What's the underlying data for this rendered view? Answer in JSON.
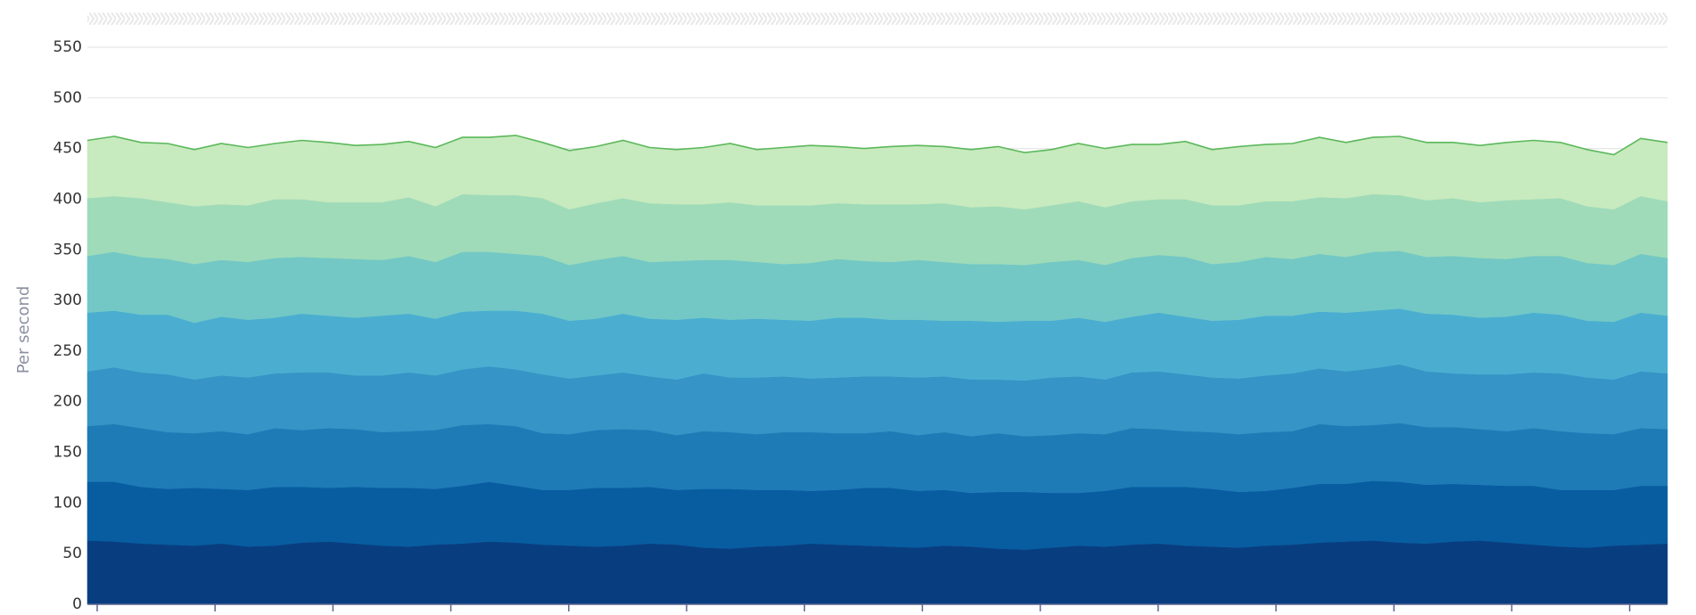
{
  "chart_data": {
    "type": "area",
    "stacked": true,
    "y_label": "Per second",
    "ylim": [
      0,
      550
    ],
    "yticks": [
      0,
      50,
      100,
      150,
      200,
      250,
      300,
      350,
      400,
      450,
      500,
      550
    ],
    "grid": true,
    "line_color": "#5cb85c",
    "series": [
      {
        "color": "#083e80",
        "values": [
          63,
          62,
          60,
          59,
          58,
          60,
          57,
          58,
          61,
          62,
          60,
          58,
          57,
          59,
          60,
          62,
          61,
          59,
          58,
          57,
          58,
          60,
          59,
          56,
          55,
          57,
          58,
          60,
          59,
          58,
          57,
          56,
          58,
          57,
          55,
          54,
          56,
          58,
          57,
          59,
          60,
          58,
          57,
          56,
          58,
          59,
          61,
          62,
          63,
          61,
          60,
          62,
          63,
          61,
          59,
          57,
          56,
          58,
          59,
          60
        ]
      },
      {
        "color": "#085da1",
        "values": [
          58,
          59,
          56,
          55,
          57,
          54,
          56,
          58,
          55,
          53,
          56,
          57,
          58,
          55,
          57,
          59,
          56,
          54,
          55,
          58,
          57,
          56,
          54,
          58,
          59,
          56,
          55,
          52,
          54,
          57,
          58,
          56,
          55,
          53,
          56,
          57,
          54,
          52,
          55,
          57,
          56,
          58,
          57,
          55,
          54,
          56,
          58,
          57,
          59,
          60,
          58,
          57,
          55,
          56,
          58,
          56,
          57,
          55,
          58,
          57
        ]
      },
      {
        "color": "#1f7bb6",
        "values": [
          55,
          57,
          58,
          56,
          54,
          57,
          55,
          58,
          56,
          59,
          57,
          55,
          56,
          58,
          60,
          57,
          59,
          56,
          55,
          57,
          58,
          56,
          54,
          57,
          56,
          55,
          57,
          58,
          56,
          54,
          56,
          55,
          57,
          56,
          58,
          55,
          57,
          59,
          56,
          58,
          57,
          55,
          56,
          57,
          58,
          56,
          59,
          57,
          55,
          58,
          57,
          56,
          55,
          54,
          57,
          58,
          56,
          55,
          57,
          56
        ]
      },
      {
        "color": "#3694c6",
        "values": [
          54,
          56,
          55,
          57,
          53,
          55,
          56,
          54,
          57,
          55,
          53,
          56,
          58,
          54,
          55,
          57,
          56,
          58,
          55,
          54,
          56,
          53,
          55,
          57,
          54,
          56,
          55,
          53,
          55,
          56,
          54,
          57,
          55,
          56,
          53,
          55,
          57,
          56,
          54,
          55,
          57,
          56,
          54,
          55,
          56,
          57,
          55,
          54,
          56,
          58,
          55,
          53,
          54,
          56,
          55,
          57,
          55,
          54,
          56,
          55
        ]
      },
      {
        "color": "#4baed1",
        "values": [
          58,
          56,
          57,
          59,
          56,
          58,
          57,
          55,
          58,
          56,
          57,
          59,
          58,
          56,
          57,
          55,
          58,
          60,
          57,
          56,
          58,
          57,
          59,
          55,
          57,
          58,
          56,
          57,
          59,
          58,
          56,
          57,
          55,
          58,
          57,
          59,
          56,
          58,
          57,
          55,
          58,
          57,
          56,
          58,
          59,
          57,
          56,
          58,
          57,
          55,
          57,
          58,
          56,
          57,
          59,
          58,
          56,
          57,
          58,
          57
        ]
      },
      {
        "color": "#73c8c5",
        "values": [
          56,
          58,
          57,
          55,
          58,
          56,
          57,
          59,
          56,
          57,
          58,
          55,
          57,
          56,
          59,
          58,
          56,
          57,
          55,
          58,
          57,
          56,
          58,
          57,
          59,
          56,
          55,
          57,
          58,
          56,
          57,
          59,
          58,
          56,
          57,
          55,
          58,
          57,
          56,
          58,
          57,
          59,
          56,
          57,
          58,
          56,
          57,
          55,
          58,
          57,
          56,
          58,
          59,
          57,
          56,
          58,
          57,
          56,
          58,
          57
        ]
      },
      {
        "color": "#9fdbb9",
        "values": [
          57,
          55,
          58,
          56,
          57,
          55,
          56,
          58,
          57,
          55,
          56,
          57,
          58,
          55,
          57,
          56,
          58,
          57,
          55,
          56,
          57,
          58,
          56,
          55,
          57,
          56,
          58,
          57,
          55,
          56,
          57,
          55,
          58,
          56,
          57,
          55,
          56,
          58,
          57,
          56,
          55,
          57,
          58,
          56,
          55,
          57,
          56,
          58,
          57,
          55,
          56,
          57,
          55,
          58,
          56,
          57,
          56,
          55,
          57,
          56
        ]
      },
      {
        "color": "#c7eabe",
        "values": [
          57,
          59,
          55,
          58,
          56,
          60,
          57,
          55,
          58,
          59,
          56,
          57,
          55,
          58,
          56,
          57,
          59,
          55,
          58,
          56,
          57,
          55,
          54,
          56,
          58,
          55,
          57,
          59,
          56,
          55,
          57,
          58,
          56,
          57,
          59,
          56,
          55,
          57,
          58,
          56,
          54,
          57,
          55,
          58,
          56,
          57,
          59,
          55,
          56,
          58,
          57,
          55,
          56,
          57,
          58,
          55,
          56,
          54,
          57,
          58
        ]
      }
    ]
  }
}
